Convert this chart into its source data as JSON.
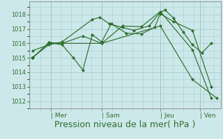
{
  "background_color": "#cde8ea",
  "grid_color": "#a8cece",
  "line_color": "#2d6e2d",
  "marker_color": "#2d6e2d",
  "xlabel": "Pression niveau de la mer( hPa )",
  "xlabel_fontsize": 9,
  "yticks": [
    1012,
    1013,
    1014,
    1015,
    1016,
    1017,
    1018
  ],
  "ylim": [
    1011.5,
    1018.9
  ],
  "xlim": [
    -0.15,
    10.0
  ],
  "day_labels": [
    "| Mer",
    "| Sam",
    "| Jeu",
    "| Ven"
  ],
  "day_positions": [
    1.0,
    3.7,
    6.8,
    8.9
  ],
  "vline_positions": [
    1.0,
    3.7,
    6.8,
    8.9
  ],
  "lines": [
    {
      "x": [
        0.0,
        1.0,
        3.7,
        6.8,
        8.5,
        9.8
      ],
      "y": [
        1015.0,
        1016.0,
        1016.0,
        1017.2,
        1013.5,
        1012.2
      ]
    },
    {
      "x": [
        0.05,
        0.9,
        1.6,
        3.2,
        3.6,
        4.1,
        4.8,
        5.4,
        6.2,
        6.8,
        7.05,
        7.5,
        8.0,
        8.5,
        9.0,
        9.5
      ],
      "y": [
        1015.5,
        1015.9,
        1016.1,
        1017.65,
        1017.8,
        1017.35,
        1017.1,
        1016.9,
        1017.2,
        1018.15,
        1018.3,
        1017.75,
        1016.8,
        1015.9,
        1015.35,
        1016.0
      ]
    },
    {
      "x": [
        0.05,
        0.9,
        1.6,
        2.2,
        2.7,
        3.2,
        3.7,
        4.2,
        5.0,
        5.8,
        6.5,
        6.8,
        7.5,
        8.5,
        9.5
      ],
      "y": [
        1015.0,
        1016.05,
        1015.9,
        1015.0,
        1014.15,
        1016.6,
        1016.1,
        1017.35,
        1016.7,
        1016.65,
        1017.1,
        1018.05,
        1017.5,
        1016.9,
        1013.0
      ]
    },
    {
      "x": [
        0.05,
        0.9,
        1.6,
        2.7,
        3.7,
        4.8,
        5.8,
        6.8,
        8.5,
        9.5
      ],
      "y": [
        1015.0,
        1016.05,
        1016.0,
        1016.5,
        1016.0,
        1017.2,
        1017.15,
        1018.2,
        1015.55,
        1012.2
      ]
    }
  ]
}
